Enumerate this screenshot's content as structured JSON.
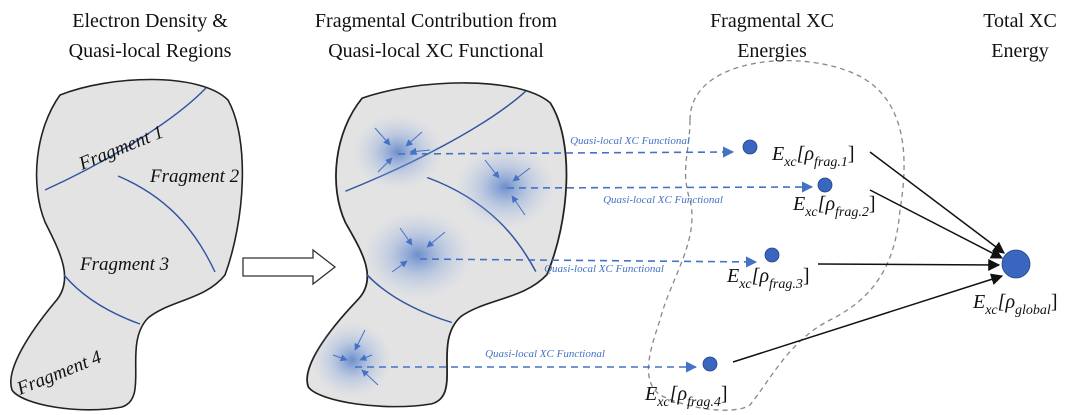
{
  "headers": [
    {
      "lines": [
        "Electron Density &",
        "Quasi-local Regions"
      ]
    },
    {
      "lines": [
        "Fragmental Contribution from",
        "Quasi-local XC Functional"
      ]
    },
    {
      "lines": [
        "Fragmental XC",
        "Energies"
      ]
    },
    {
      "lines": [
        "Total XC",
        "Energy"
      ]
    }
  ],
  "fragments": [
    "Fragment 1",
    "Fragment 2",
    "Fragment 3",
    "Fragment 4"
  ],
  "functional_labels": [
    "Quasi-local XC Functional",
    "Quasi-local XC Functional",
    "Quasi-local XC Functional",
    "Quasi-local XC Functional"
  ],
  "energies": [
    [
      "E",
      "xc",
      "[ρ",
      "frag.1",
      "]"
    ],
    [
      "E",
      "xc",
      "[ρ",
      "frag.2",
      "]"
    ],
    [
      "E",
      "xc",
      "[ρ",
      "frag.3",
      "]"
    ],
    [
      "E",
      "xc",
      "[ρ",
      "frag.4",
      "]"
    ],
    [
      "E",
      "xc",
      "[ρ",
      "global",
      "]"
    ]
  ]
}
